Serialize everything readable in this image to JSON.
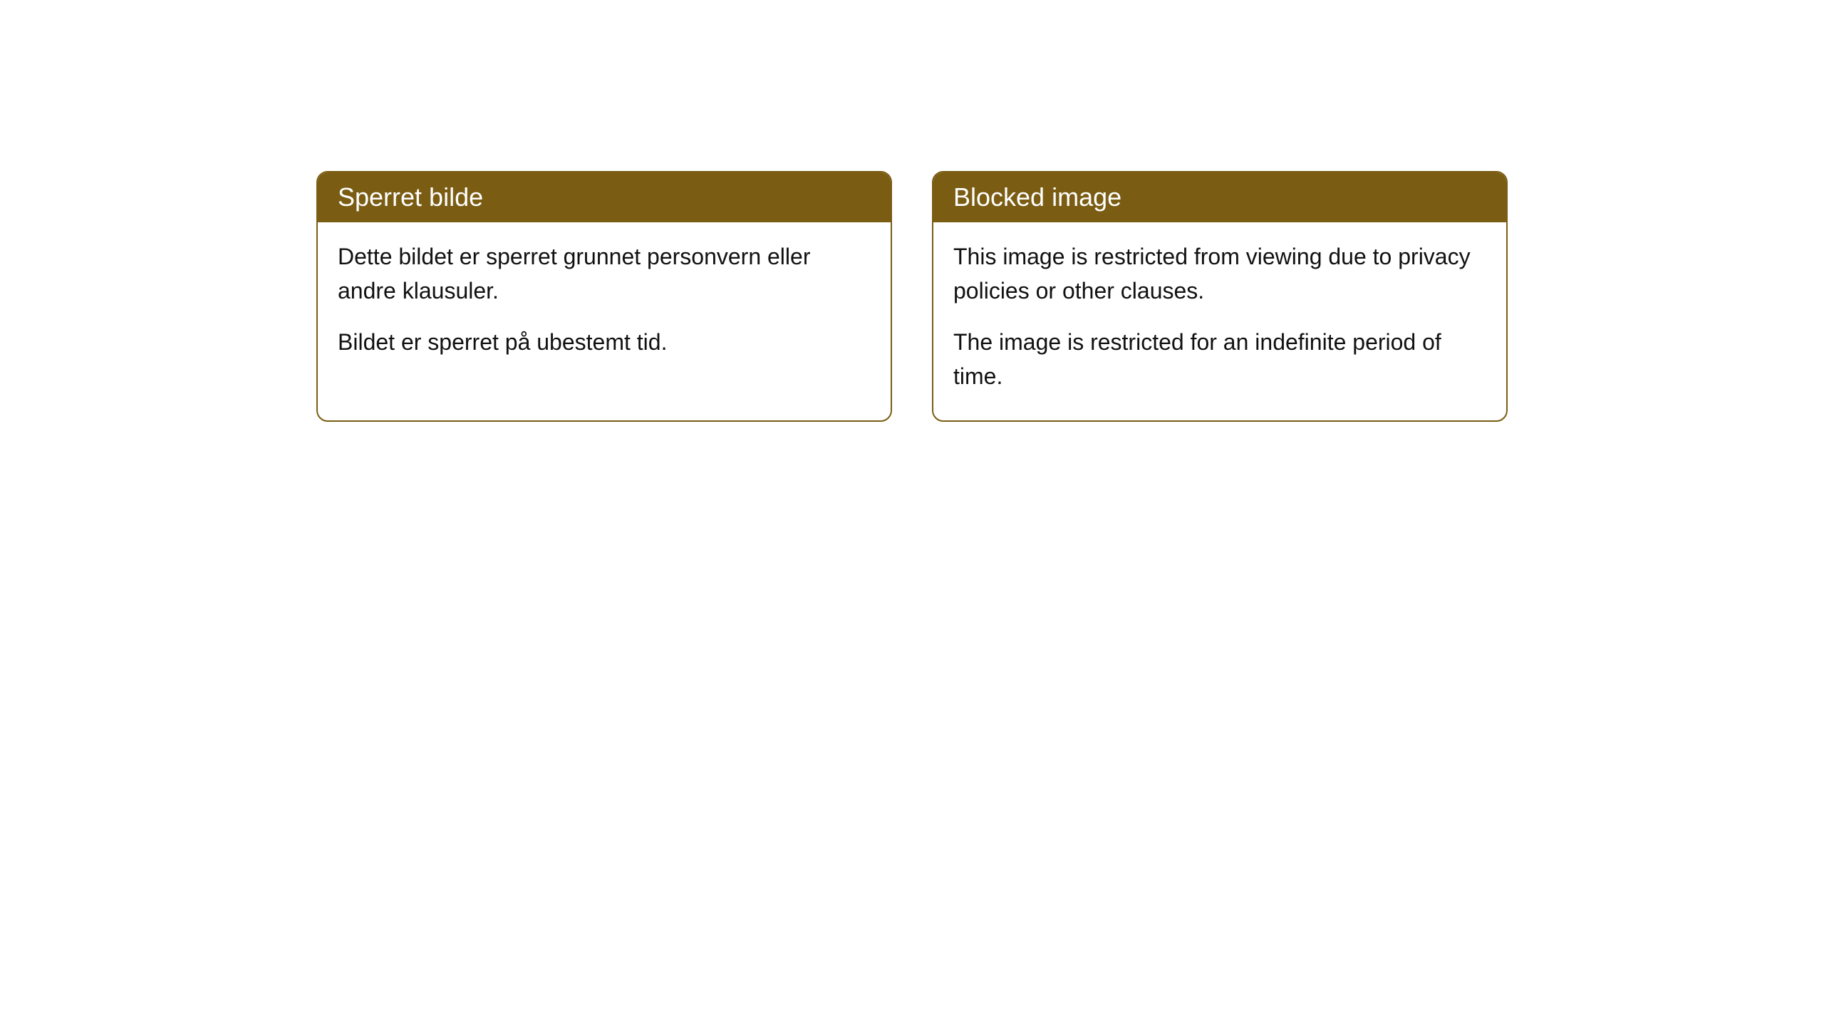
{
  "cards": [
    {
      "title": "Sperret bilde",
      "paragraph1": "Dette bildet er sperret grunnet personvern eller andre klausuler.",
      "paragraph2": "Bildet er sperret på ubestemt tid."
    },
    {
      "title": "Blocked image",
      "paragraph1": "This image is restricted from viewing due to privacy policies or other clauses.",
      "paragraph2": "The image is restricted for an indefinite period of time."
    }
  ],
  "styling": {
    "header_background": "#7a5c13",
    "header_text_color": "#ffffff",
    "border_color": "#7a5c13",
    "body_background": "#ffffff",
    "body_text_color": "#111111",
    "border_radius": 16,
    "title_fontsize": 36,
    "body_fontsize": 32
  }
}
